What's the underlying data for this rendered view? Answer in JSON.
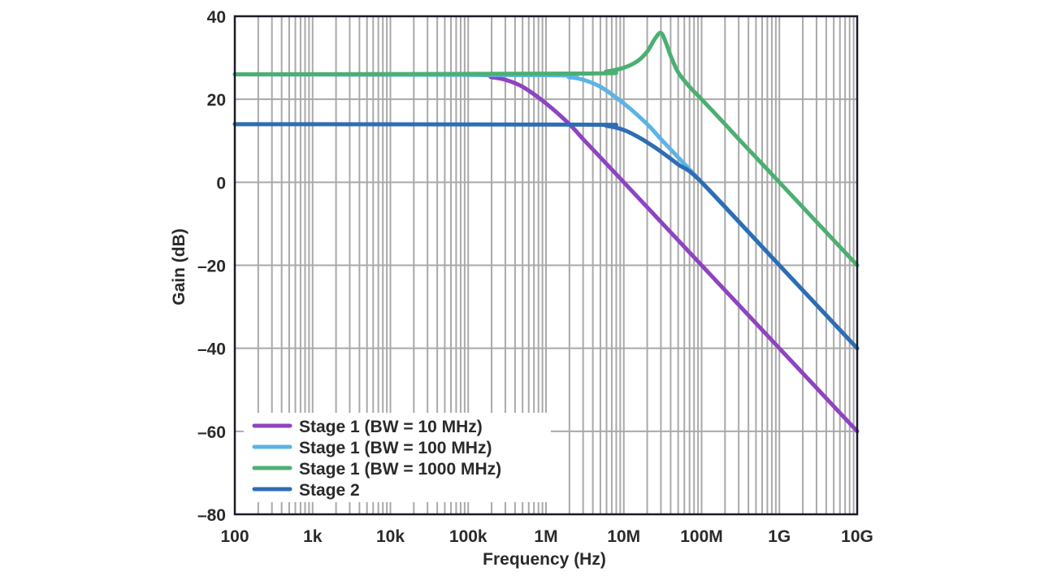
{
  "chart_data": {
    "type": "line",
    "title": "",
    "xlabel": "Frequency (Hz)",
    "ylabel": "Gain (dB)",
    "xscale": "log",
    "xlim": [
      100,
      10000000000
    ],
    "ylim": [
      -80,
      40
    ],
    "grid": true,
    "legend_position": "bottom-left",
    "x_ticks": [
      {
        "value": 100,
        "label": "100"
      },
      {
        "value": 1000,
        "label": "1k"
      },
      {
        "value": 10000,
        "label": "10k"
      },
      {
        "value": 100000,
        "label": "100k"
      },
      {
        "value": 1000000,
        "label": "1M"
      },
      {
        "value": 10000000,
        "label": "10M"
      },
      {
        "value": 100000000,
        "label": "100M"
      },
      {
        "value": 1000000000,
        "label": "1G"
      },
      {
        "value": 10000000000,
        "label": "10G"
      }
    ],
    "y_ticks": [
      {
        "value": 40,
        "label": "40"
      },
      {
        "value": 20,
        "label": "20"
      },
      {
        "value": 0,
        "label": "0"
      },
      {
        "value": -20,
        "label": "–20"
      },
      {
        "value": -40,
        "label": "–40"
      },
      {
        "value": -60,
        "label": "–60"
      },
      {
        "value": -80,
        "label": "–80"
      }
    ],
    "series": [
      {
        "name": "Stage 1 (BW = 10 MHz)",
        "color": "#8e44c0",
        "points": [
          [
            100,
            26
          ],
          [
            100000,
            25.9
          ],
          [
            200000,
            25.3
          ],
          [
            300000,
            24.7
          ],
          [
            500000,
            23
          ],
          [
            1000000,
            19
          ],
          [
            2000000,
            14
          ],
          [
            3000000,
            10.4
          ],
          [
            5000000,
            6
          ],
          [
            10000000,
            0
          ],
          [
            100000000,
            -20
          ],
          [
            1000000000,
            -40
          ],
          [
            10000000000,
            -60
          ]
        ]
      },
      {
        "name": "Stage 1 (BW = 100 MHz)",
        "color": "#5bb4e5",
        "points": [
          [
            100,
            26
          ],
          [
            1000000,
            25.8
          ],
          [
            2000000,
            25.3
          ],
          [
            3000000,
            24.7
          ],
          [
            5000000,
            23
          ],
          [
            10000000,
            19
          ],
          [
            20000000,
            14
          ],
          [
            30000000,
            10.4
          ],
          [
            50000000,
            6
          ],
          [
            100000000,
            0
          ],
          [
            1000000000,
            -20
          ],
          [
            10000000000,
            -40
          ]
        ]
      },
      {
        "name": "Stage 1 (BW = 1000 MHz)",
        "color": "#4caf72",
        "points": [
          [
            100,
            26
          ],
          [
            3000000,
            26.2
          ],
          [
            6000000,
            26.7
          ],
          [
            10000000,
            27.6
          ],
          [
            15000000,
            29.2
          ],
          [
            20000000,
            31.5
          ],
          [
            25000000,
            34.5
          ],
          [
            30000000,
            36
          ],
          [
            35000000,
            33.5
          ],
          [
            40000000,
            30.5
          ],
          [
            50000000,
            26.5
          ],
          [
            70000000,
            23
          ],
          [
            100000000,
            20
          ],
          [
            200000000,
            14
          ],
          [
            300000000,
            10.4
          ],
          [
            500000000,
            6
          ],
          [
            1000000000,
            0
          ],
          [
            10000000000,
            -20
          ]
        ]
      },
      {
        "name": "Stage 2",
        "color": "#2e6db4",
        "points": [
          [
            100,
            14
          ],
          [
            3000000,
            13.9
          ],
          [
            6000000,
            13.6
          ],
          [
            10000000,
            12.6
          ],
          [
            15000000,
            11
          ],
          [
            20000000,
            9.6
          ],
          [
            30000000,
            7.4
          ],
          [
            50000000,
            4.3
          ],
          [
            100000000,
            0
          ],
          [
            1000000000,
            -20
          ],
          [
            10000000000,
            -40
          ]
        ]
      }
    ]
  }
}
